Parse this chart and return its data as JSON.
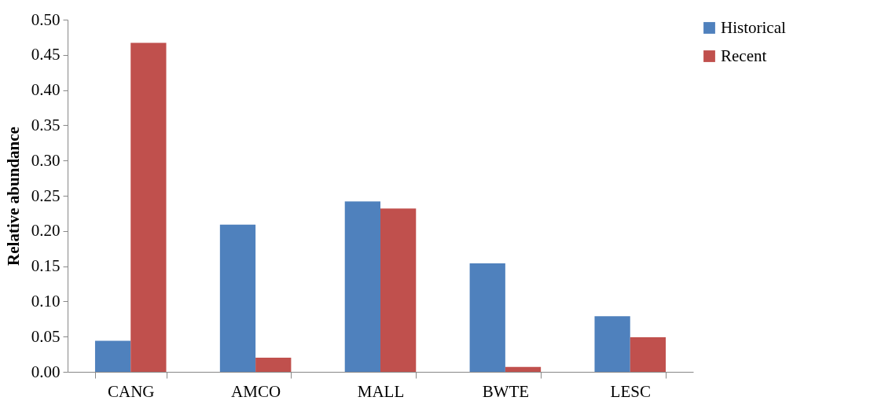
{
  "chart_data": {
    "type": "bar",
    "ylabel": "Relative abundance",
    "categories": [
      "CANG",
      "AMCO",
      "MALL",
      "BWTE",
      "LESC"
    ],
    "series": [
      {
        "name": "Historical",
        "color": "#4f81bd",
        "values": [
          0.044,
          0.209,
          0.242,
          0.154,
          0.079
        ]
      },
      {
        "name": "Recent",
        "color": "#c0504d",
        "values": [
          0.467,
          0.02,
          0.232,
          0.007,
          0.049
        ]
      }
    ],
    "ylim": [
      0,
      0.5
    ],
    "yticks": [
      {
        "value": 0,
        "label": "0.00"
      },
      {
        "value": 0.05,
        "label": "0.05"
      },
      {
        "value": 0.1,
        "label": "0.10"
      },
      {
        "value": 0.15,
        "label": "0.15"
      },
      {
        "value": 0.2,
        "label": "0.20"
      },
      {
        "value": 0.25,
        "label": "0.25"
      },
      {
        "value": 0.3,
        "label": "0.30"
      },
      {
        "value": 0.35,
        "label": "0.35"
      },
      {
        "value": 0.4,
        "label": "0.40"
      },
      {
        "value": 0.45,
        "label": "0.45"
      },
      {
        "value": 0.5,
        "label": "0.50"
      }
    ],
    "grid": false,
    "legend": "right"
  }
}
